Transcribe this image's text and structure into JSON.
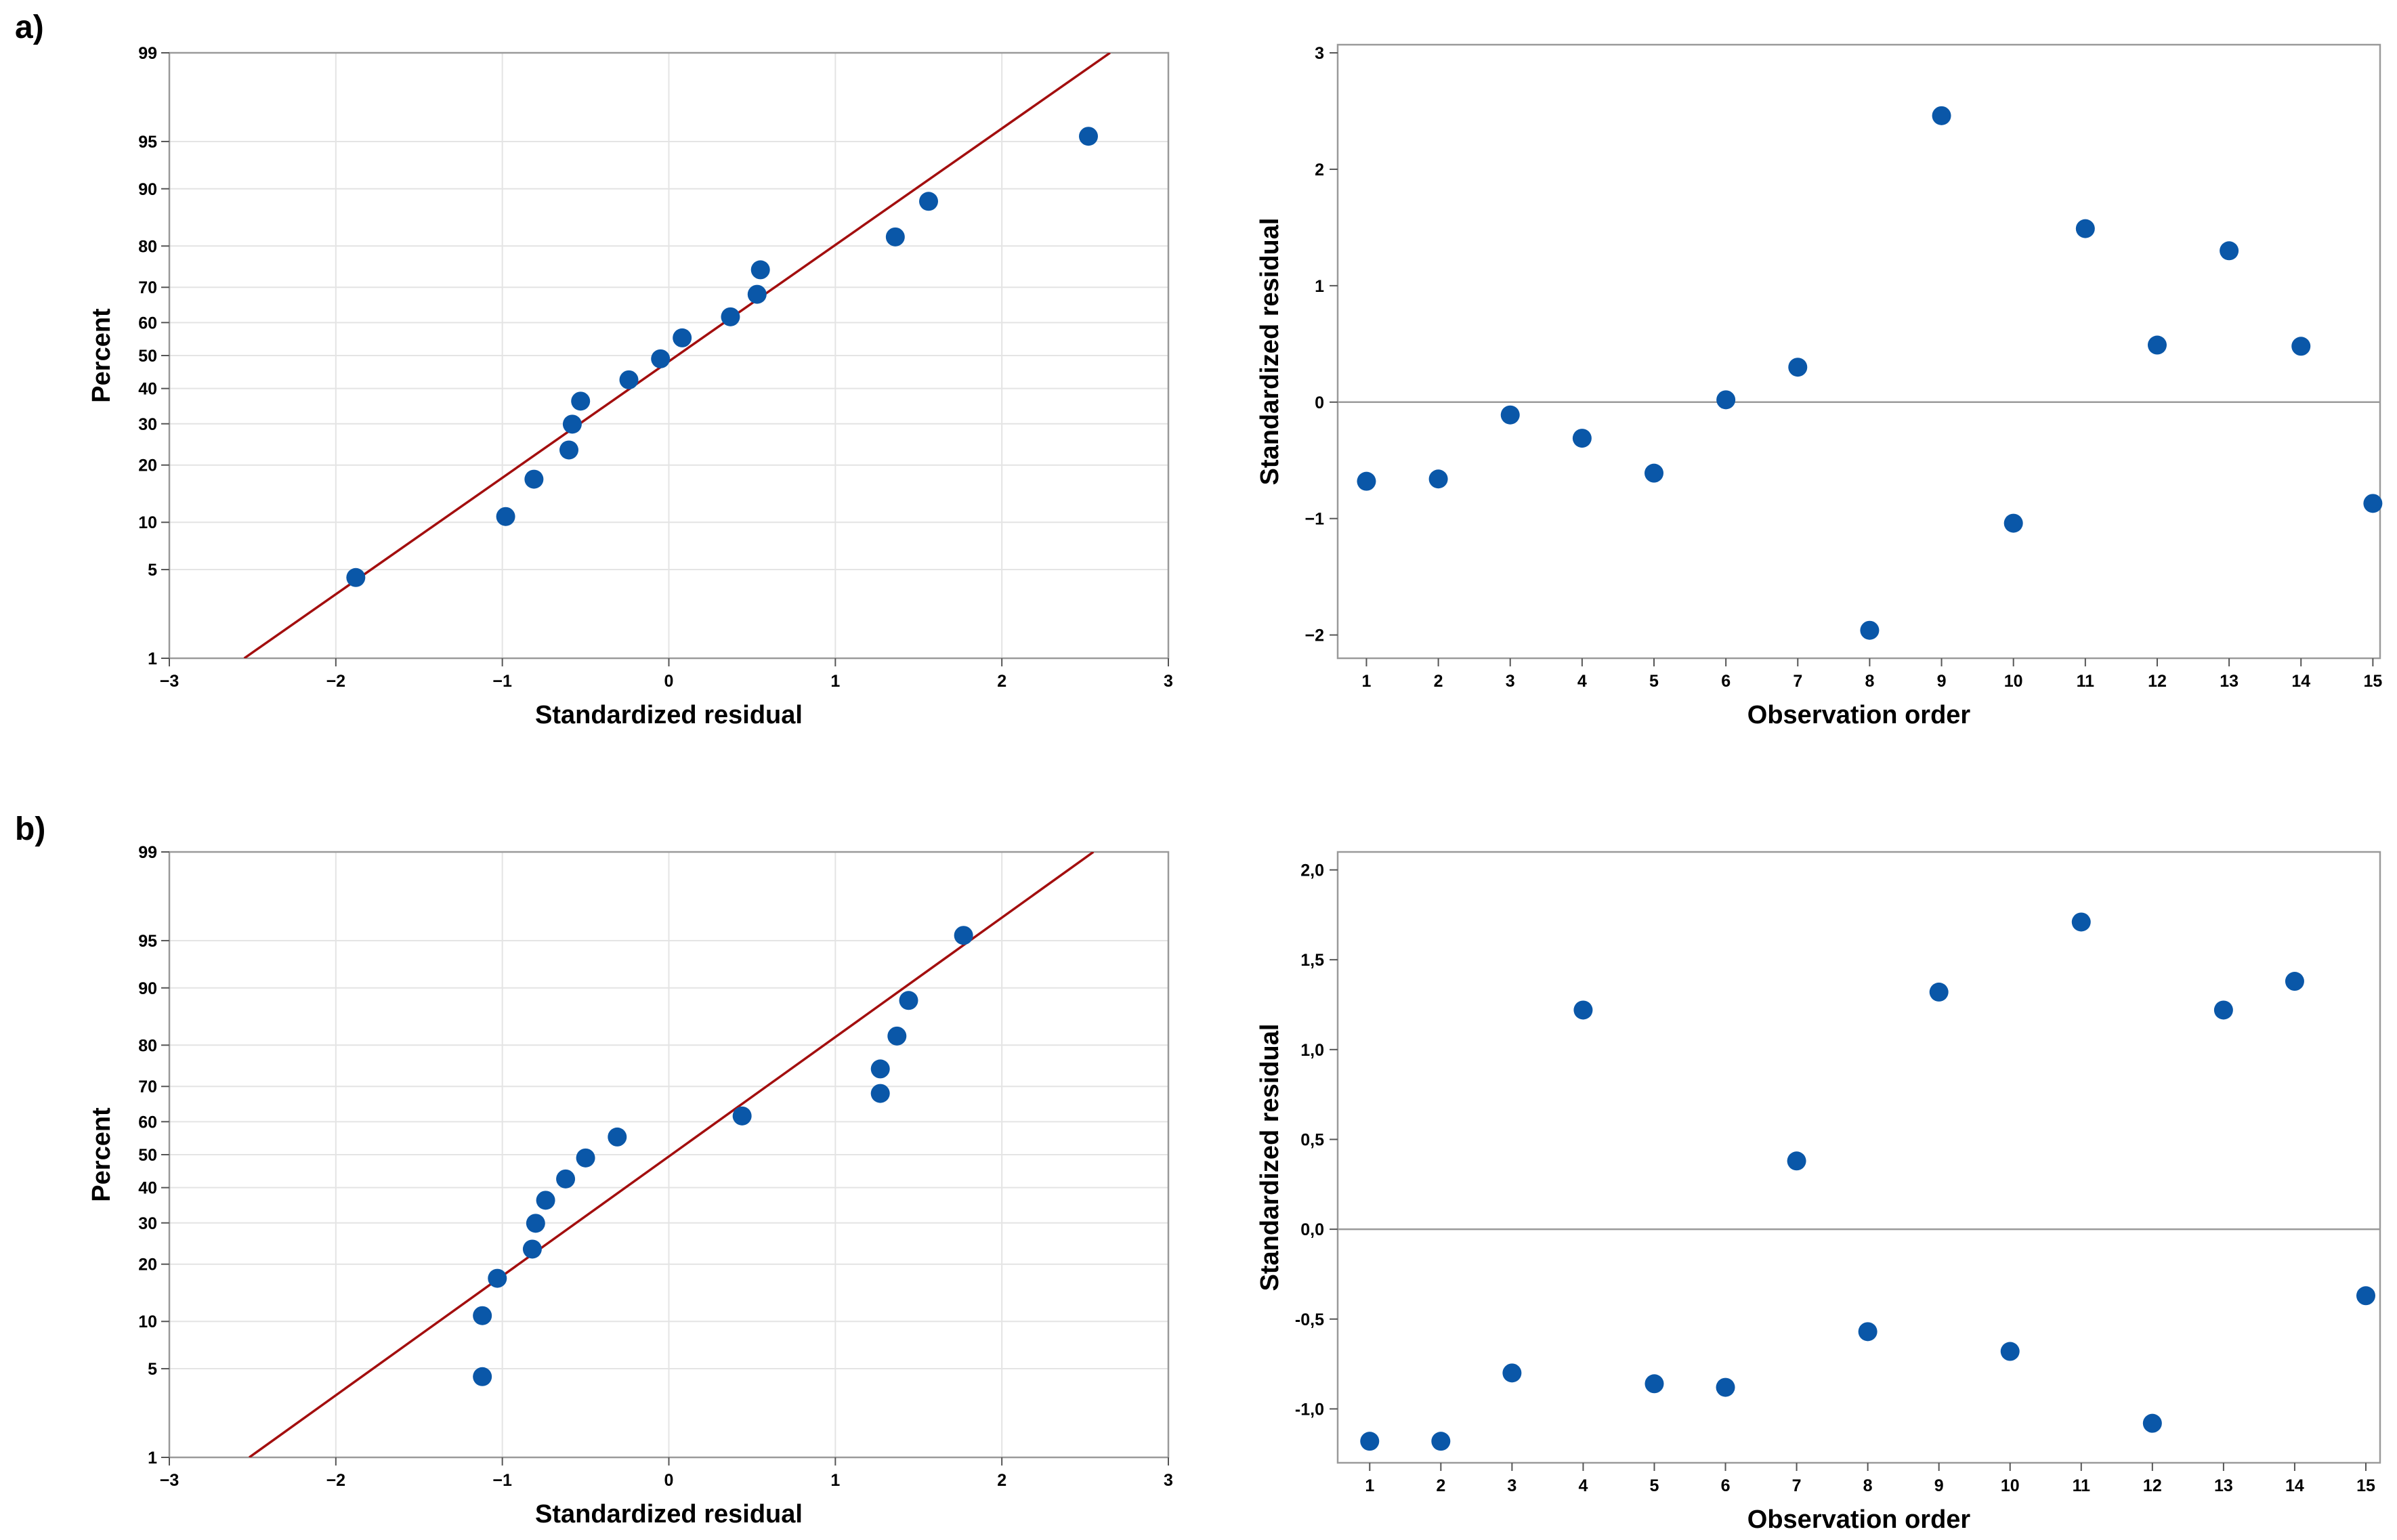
{
  "panel_labels": [
    "a)",
    "b)"
  ],
  "colors": {
    "points": "#0a57a8",
    "fit_line": "#a30e0e",
    "grid": "#e4e4e4",
    "frame": "#9a9a9a",
    "ref_line": "#9a9a9a"
  },
  "chart_data": [
    {
      "id": "a-normal",
      "type": "scatter",
      "subtype": "normal-probability-plot",
      "panel": "a)",
      "xlabel": "Standardized  residual",
      "ylabel": "Percent",
      "xlim": [
        -3,
        3
      ],
      "xticks": [
        "−3",
        "−2",
        "−1",
        "0",
        "1",
        "2",
        "3"
      ],
      "yscale": "normal-probability",
      "ylim_percent": [
        1,
        99
      ],
      "yticks": [
        1,
        5,
        10,
        20,
        30,
        40,
        50,
        60,
        70,
        80,
        90,
        95,
        99
      ],
      "grid": true,
      "fit_line": {
        "x": [
          -2.55,
          2.65
        ],
        "y_percent": [
          1,
          99
        ]
      },
      "points": [
        {
          "x": -1.88,
          "y": 4.4
        },
        {
          "x": -0.98,
          "y": 10.8
        },
        {
          "x": -0.81,
          "y": 17.1
        },
        {
          "x": -0.6,
          "y": 23.4
        },
        {
          "x": -0.58,
          "y": 29.9
        },
        {
          "x": -0.53,
          "y": 36.3
        },
        {
          "x": -0.24,
          "y": 42.6
        },
        {
          "x": -0.05,
          "y": 49.0
        },
        {
          "x": 0.08,
          "y": 55.4
        },
        {
          "x": 0.37,
          "y": 61.7
        },
        {
          "x": 0.53,
          "y": 68.1
        },
        {
          "x": 0.55,
          "y": 74.5
        },
        {
          "x": 1.36,
          "y": 81.9
        },
        {
          "x": 1.56,
          "y": 88.2
        },
        {
          "x": 2.52,
          "y": 95.4
        }
      ]
    },
    {
      "id": "a-order",
      "type": "scatter",
      "subtype": "residuals-vs-order",
      "panel": "a)",
      "xlabel": "Observation  order",
      "ylabel": "Standardized  residual",
      "xlim": [
        0.6,
        15.1
      ],
      "xticks": [
        "1",
        "2",
        "3",
        "4",
        "5",
        "6",
        "7",
        "8",
        "9",
        "10",
        "11",
        "12",
        "13",
        "14",
        "15"
      ],
      "ylim": [
        -2.2,
        3.07
      ],
      "yticks": [
        -2,
        -1,
        0,
        1,
        2,
        3
      ],
      "ytick_labels": [
        "−2",
        "−1",
        "0",
        "1",
        "2",
        "3"
      ],
      "reference_line_y": 0,
      "grid": false,
      "x": [
        1,
        2,
        3,
        4,
        5,
        6,
        7,
        8,
        9,
        10,
        11,
        12,
        13,
        14,
        15
      ],
      "y": [
        -0.68,
        -0.66,
        -0.11,
        -0.31,
        -0.61,
        0.02,
        0.3,
        -1.96,
        2.46,
        -1.04,
        1.49,
        0.49,
        1.3,
        0.48,
        -0.87
      ]
    },
    {
      "id": "b-normal",
      "type": "scatter",
      "subtype": "normal-probability-plot",
      "panel": "b)",
      "xlabel": "Standardized  residual",
      "ylabel": "Percent",
      "xlim": [
        -3,
        3
      ],
      "xticks": [
        "−3",
        "−2",
        "−1",
        "0",
        "1",
        "2",
        "3"
      ],
      "yscale": "normal-probability",
      "ylim_percent": [
        1,
        99
      ],
      "yticks": [
        1,
        5,
        10,
        20,
        30,
        40,
        50,
        60,
        70,
        80,
        90,
        95,
        99
      ],
      "grid": true,
      "fit_line": {
        "x": [
          -2.52,
          2.55
        ],
        "y_percent": [
          1,
          99
        ]
      },
      "points": [
        {
          "x": -1.12,
          "y": 4.4
        },
        {
          "x": -1.12,
          "y": 10.8
        },
        {
          "x": -1.03,
          "y": 17.1
        },
        {
          "x": -0.82,
          "y": 23.4
        },
        {
          "x": -0.8,
          "y": 29.9
        },
        {
          "x": -0.74,
          "y": 36.3
        },
        {
          "x": -0.62,
          "y": 42.6
        },
        {
          "x": -0.5,
          "y": 49.0
        },
        {
          "x": -0.31,
          "y": 55.4
        },
        {
          "x": 0.44,
          "y": 61.7
        },
        {
          "x": 1.27,
          "y": 68.1
        },
        {
          "x": 1.27,
          "y": 74.5
        },
        {
          "x": 1.37,
          "y": 81.9
        },
        {
          "x": 1.44,
          "y": 88.2
        },
        {
          "x": 1.77,
          "y": 95.4
        }
      ]
    },
    {
      "id": "b-order",
      "type": "scatter",
      "subtype": "residuals-vs-order",
      "panel": "b)",
      "xlabel": "Observation  order",
      "ylabel": "Standardized  residual",
      "xlim": [
        0.55,
        15.2
      ],
      "xticks": [
        "1",
        "2",
        "3",
        "4",
        "5",
        "6",
        "7",
        "8",
        "9",
        "10",
        "11",
        "12",
        "13",
        "14",
        "15"
      ],
      "ylim": [
        -1.3,
        2.1
      ],
      "yticks": [
        -1.0,
        -0.5,
        0.0,
        0.5,
        1.0,
        1.5,
        2.0
      ],
      "ytick_labels": [
        "-1,0",
        "-0,5",
        "0,0",
        "0,5",
        "1,0",
        "1,5",
        "2,0"
      ],
      "reference_line_y": 0,
      "grid": false,
      "x": [
        1,
        2,
        3,
        4,
        5,
        6,
        7,
        8,
        9,
        10,
        11,
        12,
        13,
        14,
        15
      ],
      "y": [
        -1.18,
        -1.18,
        -0.8,
        1.22,
        -0.86,
        -0.88,
        0.38,
        -0.57,
        1.32,
        -0.68,
        1.71,
        -1.08,
        1.22,
        1.38,
        -0.37
      ]
    }
  ]
}
